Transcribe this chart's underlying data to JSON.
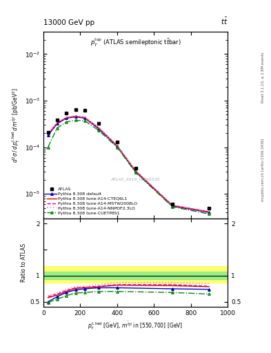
{
  "title_top": "13000 GeV pp",
  "title_right": "t$\\bar{t}$",
  "plot_label": "$p_T^{top}$ (ATLAS semileptonic t$\\bar{t}$bar)",
  "watermark": "ATLAS_2019_I1750330",
  "right_label_top": "Rivet 3.1.10, ≥ 2.8M events",
  "right_label_bot": "mcplots.cern.ch [arXiv:1306.3436]",
  "xdata": [
    25,
    75,
    125,
    175,
    225,
    300,
    400,
    500,
    700,
    900
  ],
  "atlas_y": [
    0.00021,
    0.00038,
    0.00055,
    0.00065,
    0.00062,
    0.00032,
    0.00013,
    3.5e-05,
    6e-06,
    5e-06
  ],
  "py_default_x": [
    25,
    75,
    125,
    175,
    225,
    300,
    400,
    500,
    700,
    900
  ],
  "py_default_y": [
    0.00018,
    0.00032,
    0.00042,
    0.00045,
    0.00042,
    0.00025,
    0.000105,
    3e-05,
    5.5e-06,
    4e-06
  ],
  "py_cteg_x": [
    25,
    75,
    125,
    175,
    225,
    300,
    400,
    500,
    700,
    900
  ],
  "py_cteg_y": [
    0.00019,
    0.00033,
    0.00043,
    0.00046,
    0.00043,
    0.00026,
    0.000108,
    3.1e-05,
    5.6e-06,
    4.1e-06
  ],
  "py_mstw_x": [
    25,
    75,
    125,
    175,
    225,
    300,
    400,
    500,
    700,
    900
  ],
  "py_mstw_y": [
    0.00019,
    0.000335,
    0.000435,
    0.000465,
    0.000435,
    0.000262,
    0.000109,
    3.15e-05,
    5.7e-06,
    4.15e-06
  ],
  "py_nnpdf_x": [
    25,
    75,
    125,
    175,
    225,
    300,
    400,
    500,
    700,
    900
  ],
  "py_nnpdf_y": [
    0.000195,
    0.00034,
    0.00044,
    0.00047,
    0.00044,
    0.000265,
    0.00011,
    3.2e-05,
    5.8e-06,
    4.2e-06
  ],
  "py_cuetp_x": [
    25,
    75,
    125,
    175,
    225,
    300,
    400,
    500,
    700,
    900
  ],
  "py_cuetp_y": [
    0.0001,
    0.00026,
    0.00035,
    0.00038,
    0.00037,
    0.00023,
    0.0001,
    2.9e-05,
    5.3e-06,
    3.7e-06
  ],
  "ratio_x": [
    25,
    75,
    125,
    175,
    225,
    300,
    400,
    700,
    900
  ],
  "ratio_default": [
    0.5,
    0.6,
    0.68,
    0.73,
    0.75,
    0.77,
    0.77,
    0.75,
    0.74
  ],
  "ratio_cteg": [
    0.58,
    0.63,
    0.7,
    0.76,
    0.77,
    0.79,
    0.82,
    0.81,
    0.79
  ],
  "ratio_mstw": [
    0.6,
    0.65,
    0.72,
    0.77,
    0.78,
    0.8,
    0.83,
    0.83,
    0.8
  ],
  "ratio_nnpdf": [
    0.62,
    0.67,
    0.74,
    0.79,
    0.8,
    0.83,
    0.87,
    0.87,
    0.85
  ],
  "ratio_cuetp": [
    0.49,
    0.55,
    0.62,
    0.67,
    0.68,
    0.7,
    0.7,
    0.68,
    0.65
  ],
  "band_yellow_lo": 0.87,
  "band_yellow_hi": 1.18,
  "band_green_lo": 0.93,
  "band_green_hi": 1.08,
  "color_default": "#0000cc",
  "color_cteg": "#dd0000",
  "color_mstw": "#dd0088",
  "color_nnpdf": "#ff88bb",
  "color_cuetp": "#008800",
  "xlim": [
    0,
    1000
  ],
  "ylim_main": [
    3e-06,
    0.03
  ],
  "ylim_ratio": [
    0.4,
    2.1
  ]
}
